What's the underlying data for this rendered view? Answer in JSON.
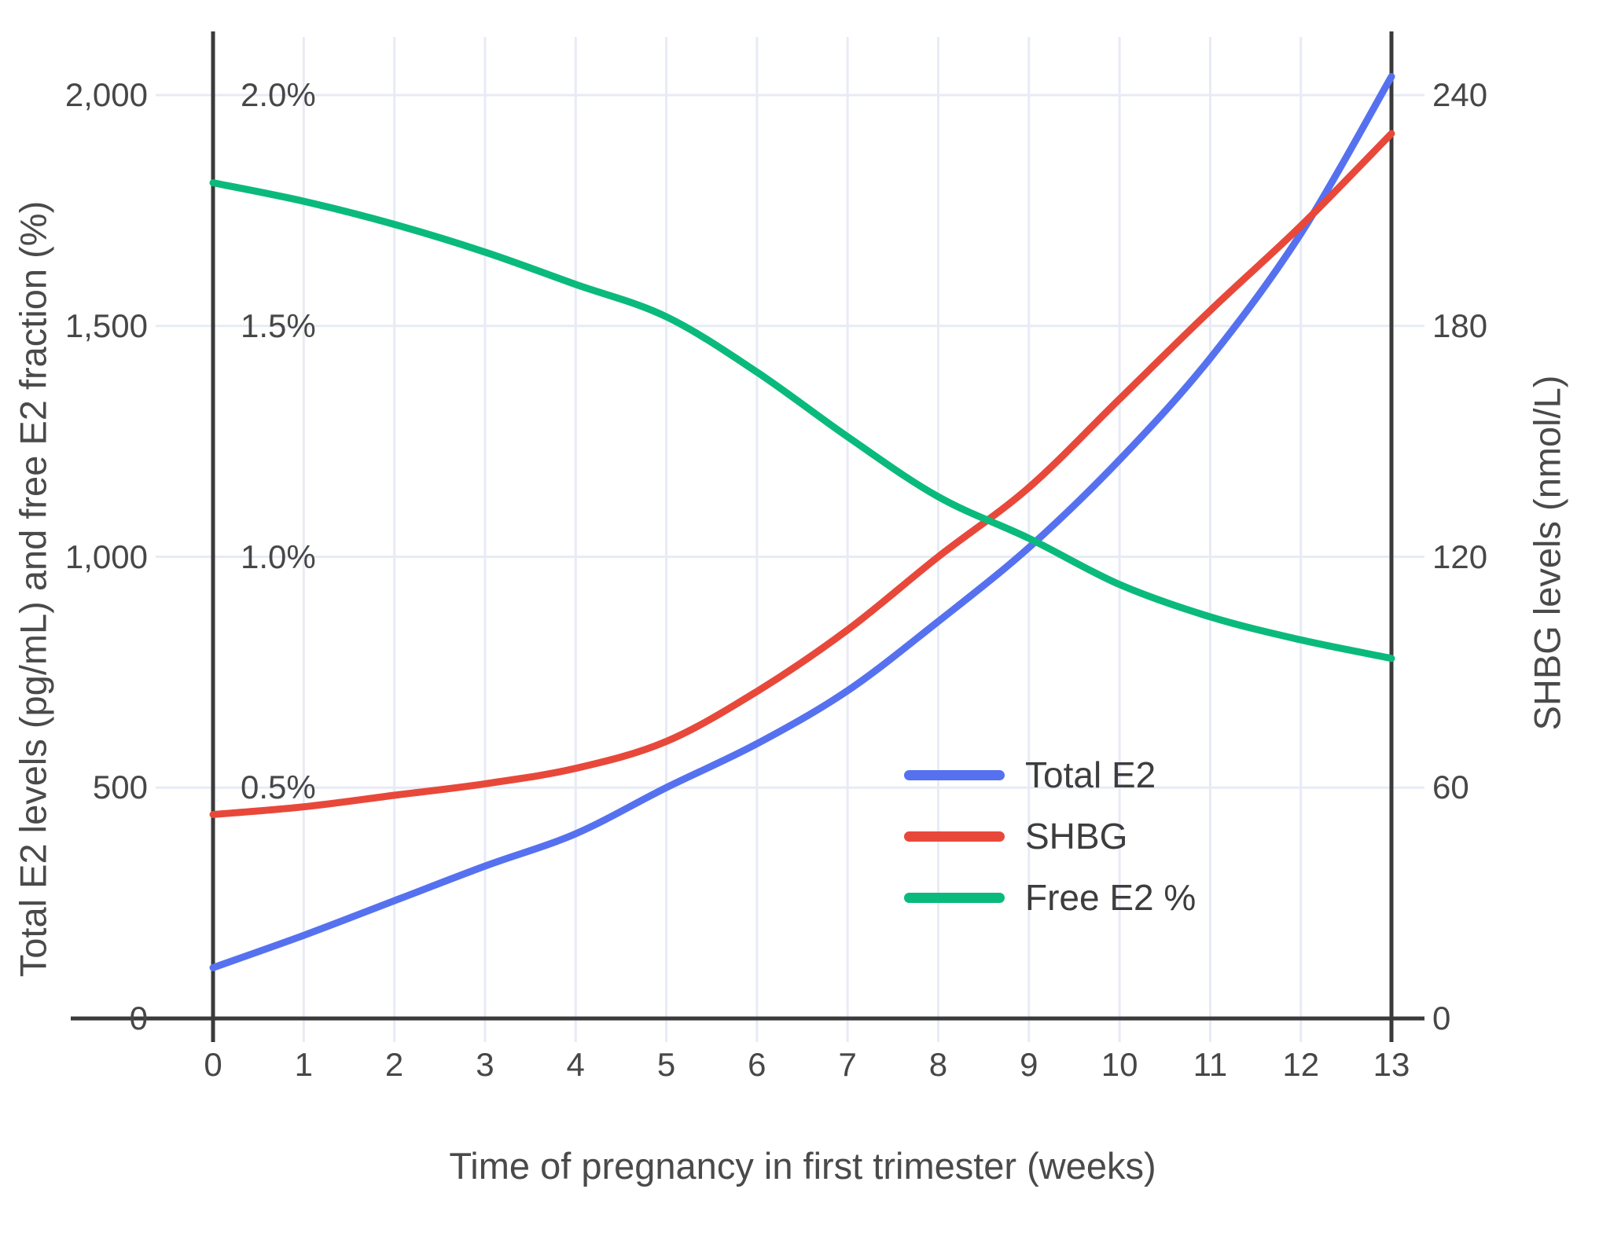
{
  "x_axis": {
    "title": "Time of pregnancy in first trimester (weeks)",
    "ticks": [
      "0",
      "1",
      "2",
      "3",
      "4",
      "5",
      "6",
      "7",
      "8",
      "9",
      "10",
      "11",
      "12",
      "13"
    ]
  },
  "left_axis": {
    "title": "Total E2 levels (pg/mL) and free E2 fraction (%)",
    "ticks": [
      "0",
      "500",
      "1,000",
      "1,500",
      "2,000"
    ],
    "pct_labels": [
      "0.5%",
      "1.0%",
      "1.5%",
      "2.0%"
    ]
  },
  "right_axis": {
    "title": "SHBG levels (nmol/L)",
    "ticks": [
      "0",
      "60",
      "120",
      "180",
      "240"
    ]
  },
  "legend": {
    "items": [
      {
        "label": "Total E2",
        "color": "#5671f0"
      },
      {
        "label": "SHBG",
        "color": "#e8483a"
      },
      {
        "label": "Free E2 %",
        "color": "#0aba7c"
      }
    ]
  },
  "colors": {
    "grid": "#e7ebf5",
    "axis": "#3a3a3a",
    "tick_text": "#474747",
    "title_text": "#4a4a4a"
  },
  "chart_data": {
    "type": "line",
    "x": [
      0,
      1,
      2,
      3,
      4,
      5,
      6,
      7,
      8,
      9,
      10,
      11,
      12,
      13
    ],
    "xlabel": "Time of pregnancy in first trimester (weeks)",
    "ylabel_left": "Total E2 levels (pg/mL) and free E2 fraction (%)",
    "ylabel_right": "SHBG levels (nmol/L)",
    "left_ylim": [
      0,
      2100
    ],
    "right_ylim": [
      0,
      252
    ],
    "left_tick_values": [
      0,
      500,
      1000,
      1500,
      2000
    ],
    "right_tick_values": [
      0,
      60,
      120,
      180,
      240
    ],
    "pct_tick_values": [
      0.5,
      1.0,
      1.5,
      2.0
    ],
    "grid": true,
    "legend_position": "inside lower right",
    "series": [
      {
        "name": "Total E2",
        "axis": "left",
        "units": "pg/mL",
        "color": "#5671f0",
        "values": [
          110,
          180,
          255,
          330,
          400,
          500,
          595,
          710,
          860,
          1020,
          1210,
          1430,
          1700,
          2040
        ]
      },
      {
        "name": "SHBG",
        "axis": "right",
        "units": "nmol/L",
        "color": "#e8483a",
        "values": [
          53,
          55,
          58,
          61,
          65,
          72,
          85,
          101,
          120,
          138,
          161,
          184,
          206,
          230
        ]
      },
      {
        "name": "Free E2 %",
        "axis": "left-percent",
        "units": "%",
        "color": "#0aba7c",
        "values": [
          1.81,
          1.77,
          1.72,
          1.66,
          1.59,
          1.52,
          1.4,
          1.26,
          1.13,
          1.04,
          0.94,
          0.87,
          0.82,
          0.78
        ]
      }
    ]
  }
}
